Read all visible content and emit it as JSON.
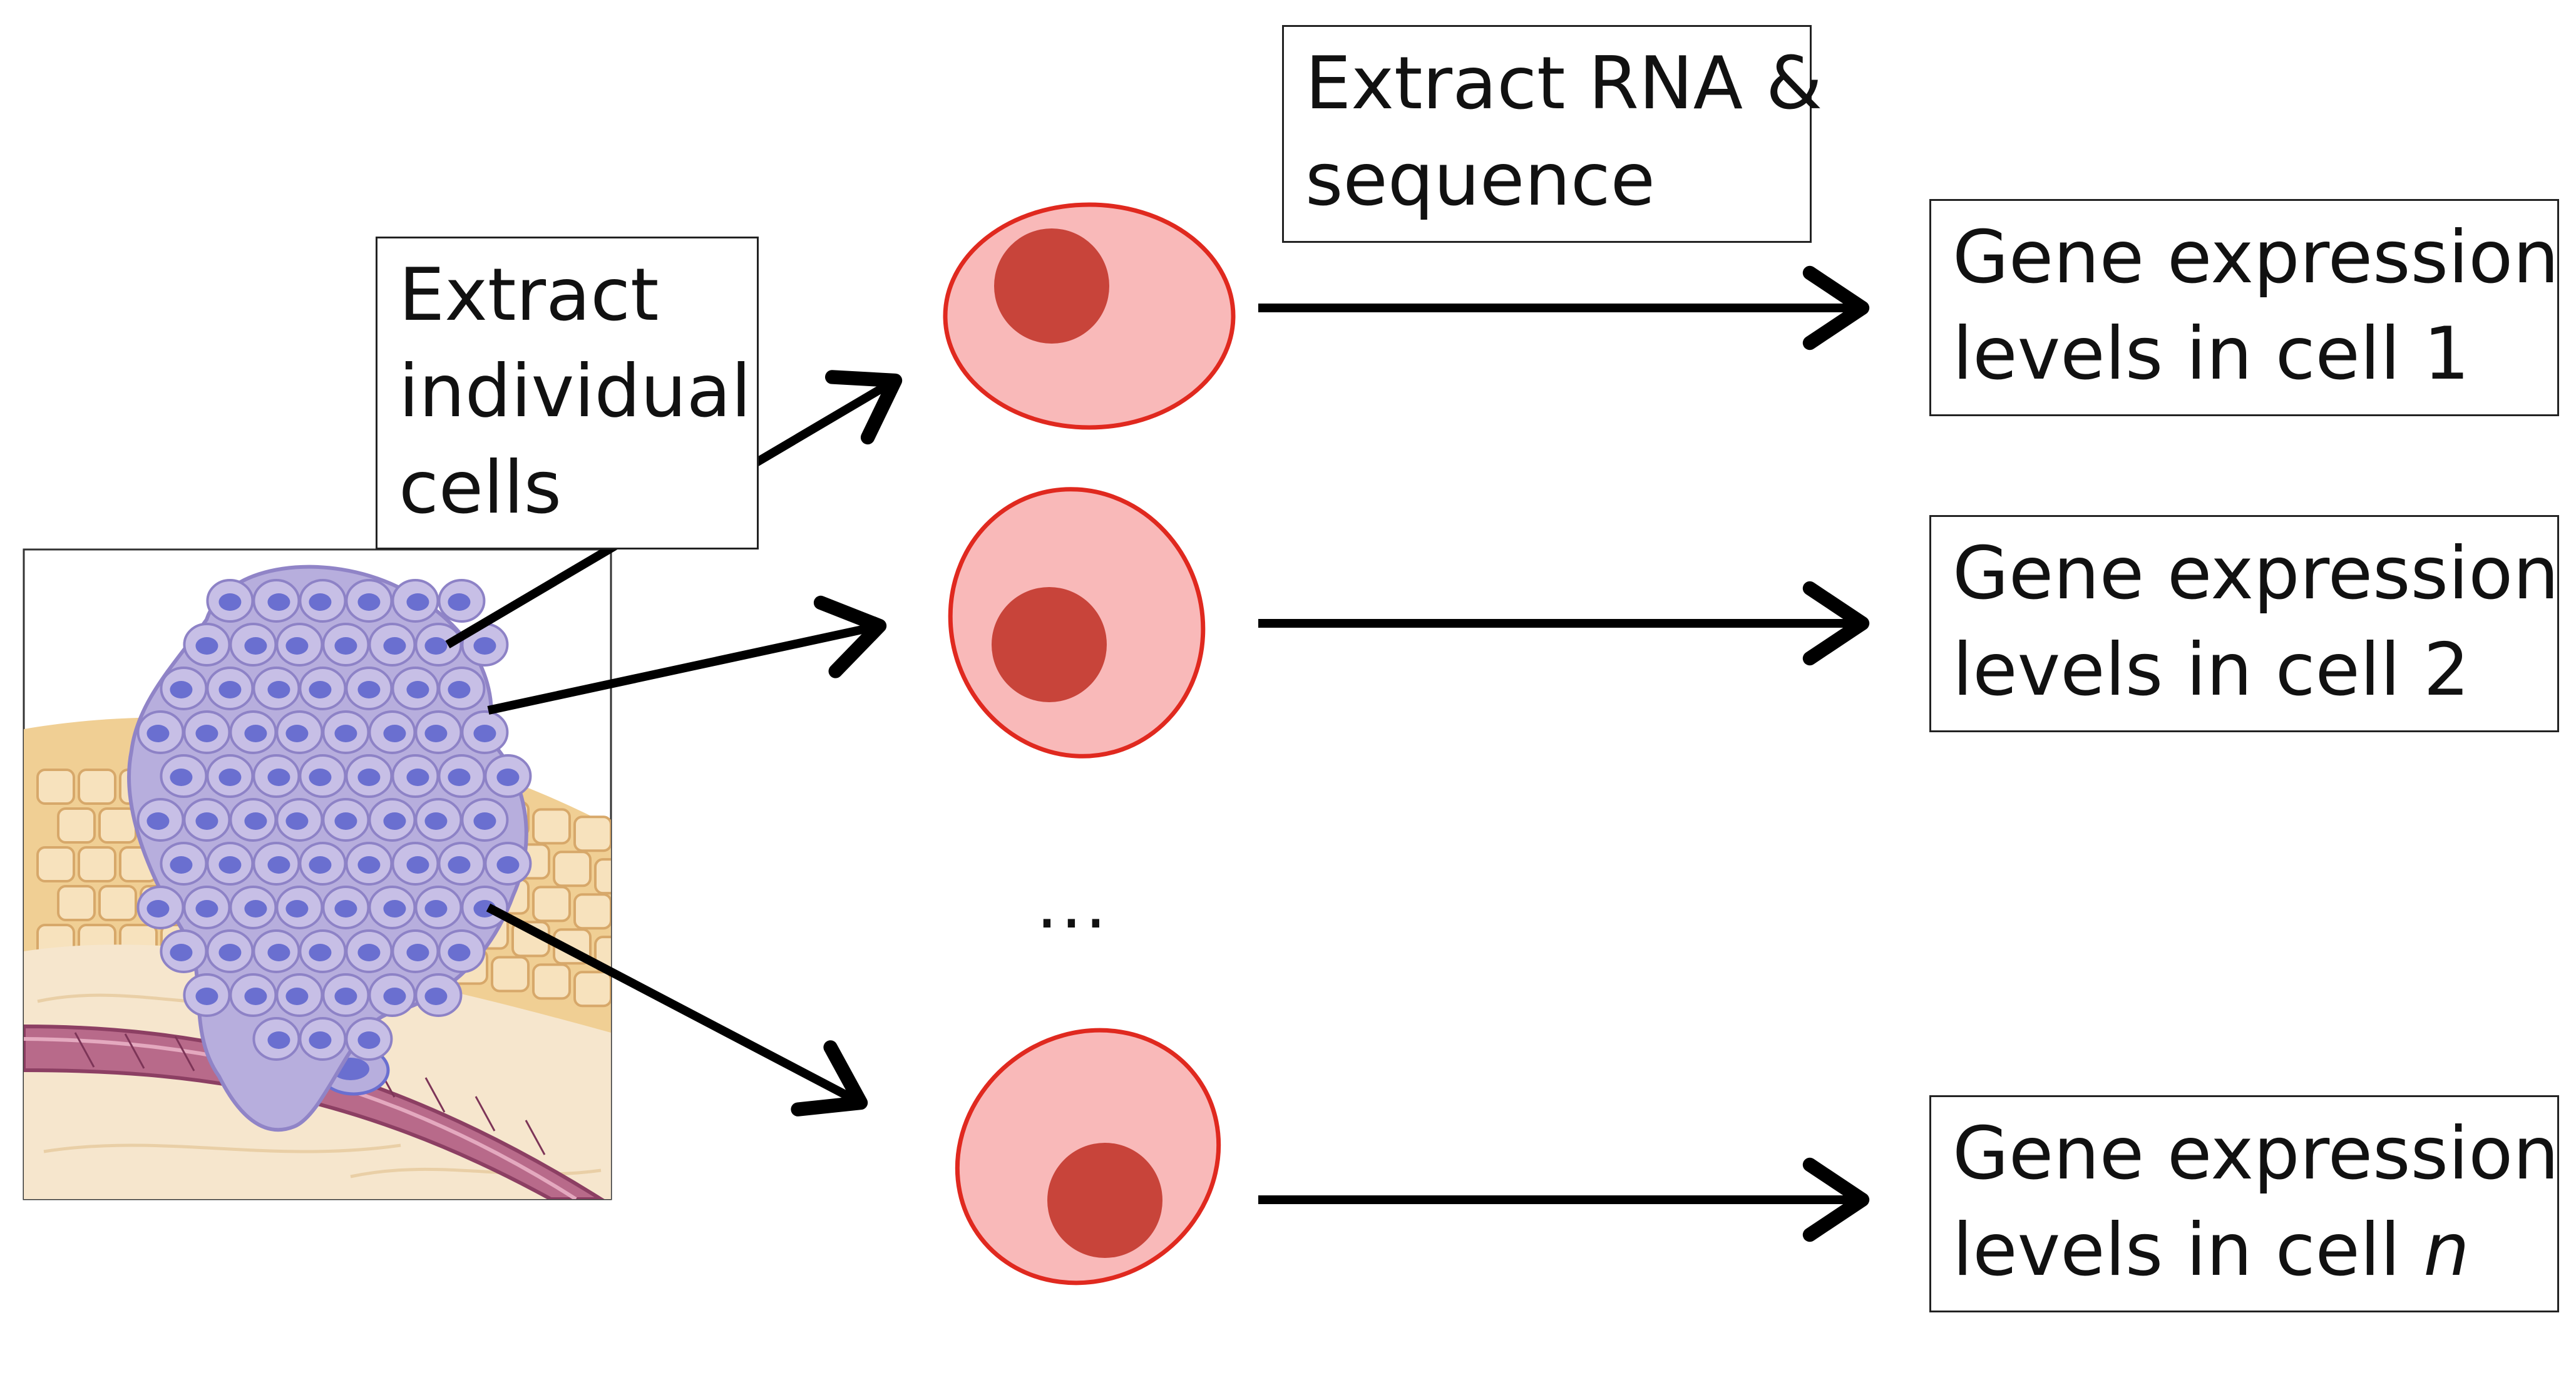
{
  "labels": {
    "extract_cells": [
      "Extract",
      "individual",
      "cells"
    ],
    "extract_rna": [
      "Extract RNA &",
      "sequence"
    ]
  },
  "outputs": [
    {
      "line1": "Gene expression",
      "line2": "levels in cell",
      "index": "1",
      "index_italic": false
    },
    {
      "line1": "Gene expression",
      "line2": "levels in cell",
      "index": "2",
      "index_italic": false
    },
    {
      "line1": "Gene expression",
      "line2": "levels in cell",
      "index": "n",
      "index_italic": true
    }
  ],
  "ellipsis": "...",
  "colors": {
    "cell_fill": "#f9b9b9",
    "cell_outline": "#e0291f",
    "nucleus": "#c8443a",
    "tumor_cell": "#b7aedd",
    "tumor_nucleus": "#6a6fd0",
    "tissue_cell": "#f3d8a7",
    "vessel": "#a8577a",
    "arrow": "#000000"
  },
  "icons": [
    "tissue-illustration",
    "cell-icon",
    "arrow-icon"
  ]
}
